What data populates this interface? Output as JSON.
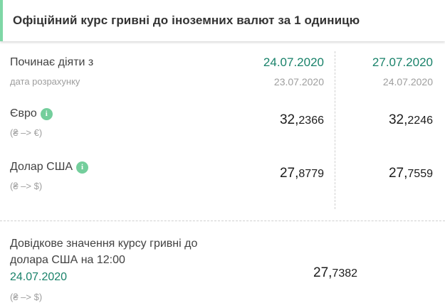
{
  "header": {
    "title": "Офіційний курс гривні до іноземних валют за 1 одиницю"
  },
  "table": {
    "effective_label": "Починає діяти з",
    "effective_sublabel": "дата розрахунку",
    "columns": [
      {
        "effective_date": "24.07.2020",
        "calculation_date": "23.07.2020"
      },
      {
        "effective_date": "27.07.2020",
        "calculation_date": "24.07.2020"
      }
    ],
    "rows": [
      {
        "name": "Євро",
        "direction": "(₴ –> €)",
        "values": [
          {
            "int": "32,",
            "frac": "2366"
          },
          {
            "int": "32,",
            "frac": "2246"
          }
        ]
      },
      {
        "name": "Долар США",
        "direction": "(₴ –> $)",
        "values": [
          {
            "int": "27,",
            "frac": "8779"
          },
          {
            "int": "27,",
            "frac": "7559"
          }
        ]
      }
    ]
  },
  "reference": {
    "label": "Довідкове значення курсу гривні до долара США на 12:00",
    "date": "24.07.2020",
    "direction": "(₴ –> $)",
    "value": {
      "int": "27,",
      "frac": "7382"
    }
  },
  "icons": {
    "info": "i"
  },
  "colors": {
    "accent_green": "#19826a",
    "icon_green": "#74ce9c",
    "border_green": "#7fd7a6",
    "gray_text": "#9e9e9e",
    "dark_text": "#424242",
    "number_text": "#1c1c1c"
  }
}
